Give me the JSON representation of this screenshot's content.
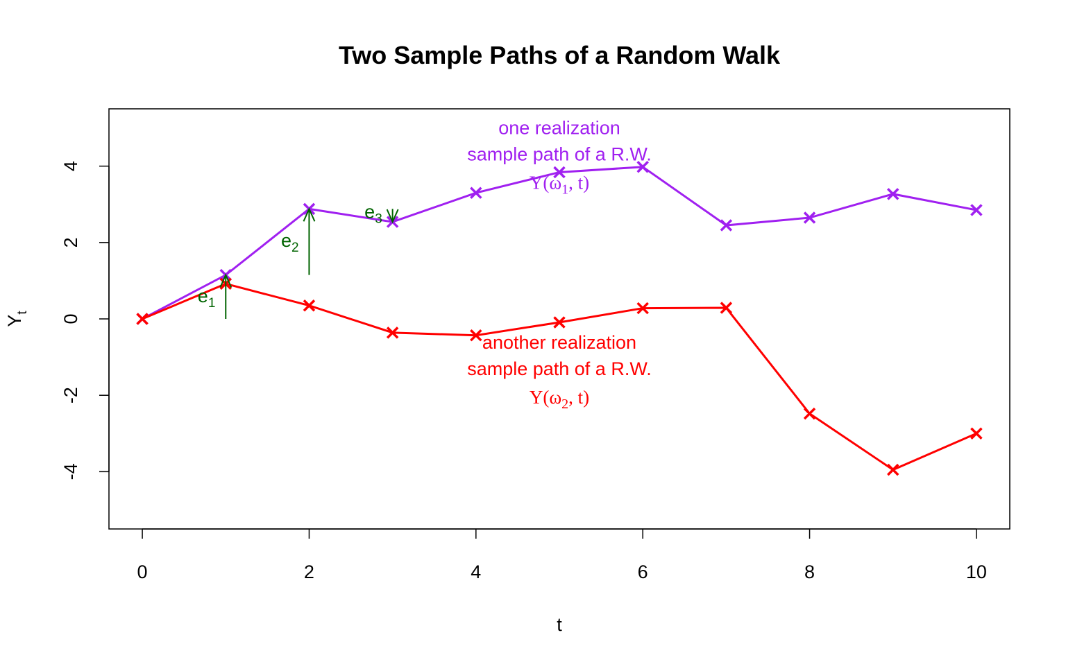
{
  "chart_data": {
    "type": "line",
    "title": "Two Sample Paths of a Random Walk",
    "xlabel": "t",
    "ylabel": "Y",
    "ylabel_subscript": "t",
    "xlim": [
      0,
      10
    ],
    "ylim": [
      -5.5,
      5.5
    ],
    "x_ticks": [
      0,
      2,
      4,
      6,
      8,
      10
    ],
    "y_ticks": [
      -4,
      -2,
      0,
      2,
      4
    ],
    "grid": false,
    "x": [
      0,
      1,
      2,
      3,
      4,
      5,
      6,
      7,
      8,
      9,
      10
    ],
    "series": [
      {
        "color": "#a020f0",
        "marker": "x",
        "values": [
          0,
          1.15,
          2.88,
          2.54,
          3.3,
          3.84,
          3.98,
          2.45,
          2.65,
          3.27,
          2.85
        ]
      },
      {
        "color": "#ff0000",
        "marker": "x",
        "values": [
          0,
          0.92,
          0.35,
          -0.36,
          -0.43,
          -0.09,
          0.28,
          0.29,
          -2.48,
          -3.95,
          -3.0
        ]
      }
    ],
    "annotations": [
      {
        "color": "#a020f0",
        "x": 5,
        "y": 5.0,
        "lines": [
          "one realization",
          "sample path of a R.W."
        ],
        "math": {
          "pre": "Y(",
          "greek": "ω",
          "sub": "1",
          "post": ", t)"
        }
      },
      {
        "color": "#ff0000",
        "x": 5,
        "y": -0.62,
        "lines": [
          "another realization",
          "sample path of a R.W."
        ],
        "math": {
          "pre": "Y(",
          "greek": "ω",
          "sub": "2",
          "post": ", t)"
        }
      }
    ],
    "increments": [
      {
        "label": "e",
        "sub": "1",
        "color": "#006400",
        "x": 1,
        "from": 0,
        "to": 1.15,
        "label_x": 0.77,
        "label_y": 0.6
      },
      {
        "label": "e",
        "sub": "2",
        "color": "#006400",
        "x": 2,
        "from": 1.15,
        "to": 2.88,
        "label_x": 1.77,
        "label_y": 2.05
      },
      {
        "label": "e",
        "sub": "3",
        "color": "#006400",
        "x": 3,
        "from": 2.88,
        "to": 2.54,
        "label_x": 2.77,
        "label_y": 2.8
      }
    ]
  }
}
